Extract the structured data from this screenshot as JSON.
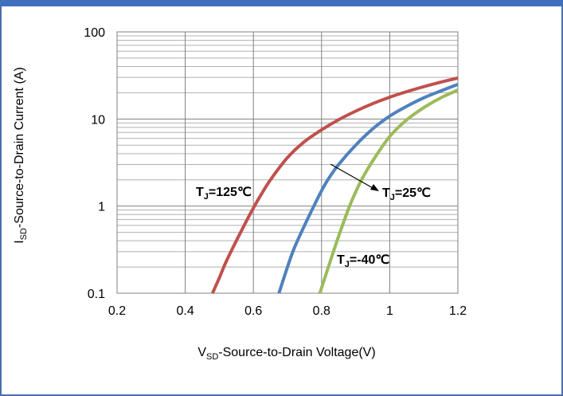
{
  "chart_data": {
    "type": "line",
    "title": "",
    "xlabel": {
      "prefix": "V",
      "sub": "SD",
      "suffix": "-Source-to-Drain Voltage(V)"
    },
    "ylabel": {
      "prefix": "I",
      "sub": "SD",
      "suffix": "-Source-to-Drain Current (A)"
    },
    "xlim": [
      0.2,
      1.2
    ],
    "ylim": [
      0.1,
      100
    ],
    "yscale": "log",
    "grid": true,
    "xticks": [
      "0.2",
      "0.4",
      "0.6",
      "0.8",
      "1",
      "1.2"
    ],
    "yticks": [
      "0.1",
      "1",
      "10",
      "100"
    ],
    "series": [
      {
        "name": "TJ=125°C",
        "color": "#c0504d",
        "x": [
          0.48,
          0.5,
          0.52,
          0.55,
          0.58,
          0.6,
          0.62,
          0.65,
          0.7,
          0.75,
          0.8,
          0.85,
          0.9,
          0.95,
          1.0,
          1.05,
          1.1,
          1.15,
          1.2
        ],
        "y": [
          0.1,
          0.15,
          0.23,
          0.4,
          0.68,
          0.95,
          1.3,
          2.0,
          3.6,
          5.5,
          7.5,
          9.8,
          12.3,
          15,
          17.8,
          20.6,
          23.5,
          26.5,
          29.5
        ]
      },
      {
        "name": "TJ=25°C",
        "color": "#4f81bd",
        "x": [
          0.675,
          0.7,
          0.72,
          0.75,
          0.78,
          0.8,
          0.82,
          0.85,
          0.9,
          0.95,
          1.0,
          1.05,
          1.1,
          1.15,
          1.2
        ],
        "y": [
          0.1,
          0.2,
          0.33,
          0.6,
          1.05,
          1.5,
          2.05,
          3.0,
          5.0,
          7.7,
          10.8,
          14,
          17.5,
          21,
          25
        ]
      },
      {
        "name": "TJ=-40°C",
        "color": "#9bbb59",
        "x": [
          0.795,
          0.82,
          0.85,
          0.88,
          0.9,
          0.92,
          0.95,
          1.0,
          1.05,
          1.1,
          1.15,
          1.2
        ],
        "y": [
          0.1,
          0.2,
          0.45,
          0.95,
          1.45,
          2.1,
          3.3,
          6.3,
          9.8,
          13.5,
          17.5,
          21.5
        ]
      }
    ],
    "annotations": [
      {
        "prefix": "T",
        "sub": "J",
        "suffix": "=125℃"
      },
      {
        "prefix": "T",
        "sub": "J",
        "suffix": "=25℃"
      },
      {
        "prefix": "T",
        "sub": "J",
        "suffix": "=-40℃"
      }
    ]
  }
}
